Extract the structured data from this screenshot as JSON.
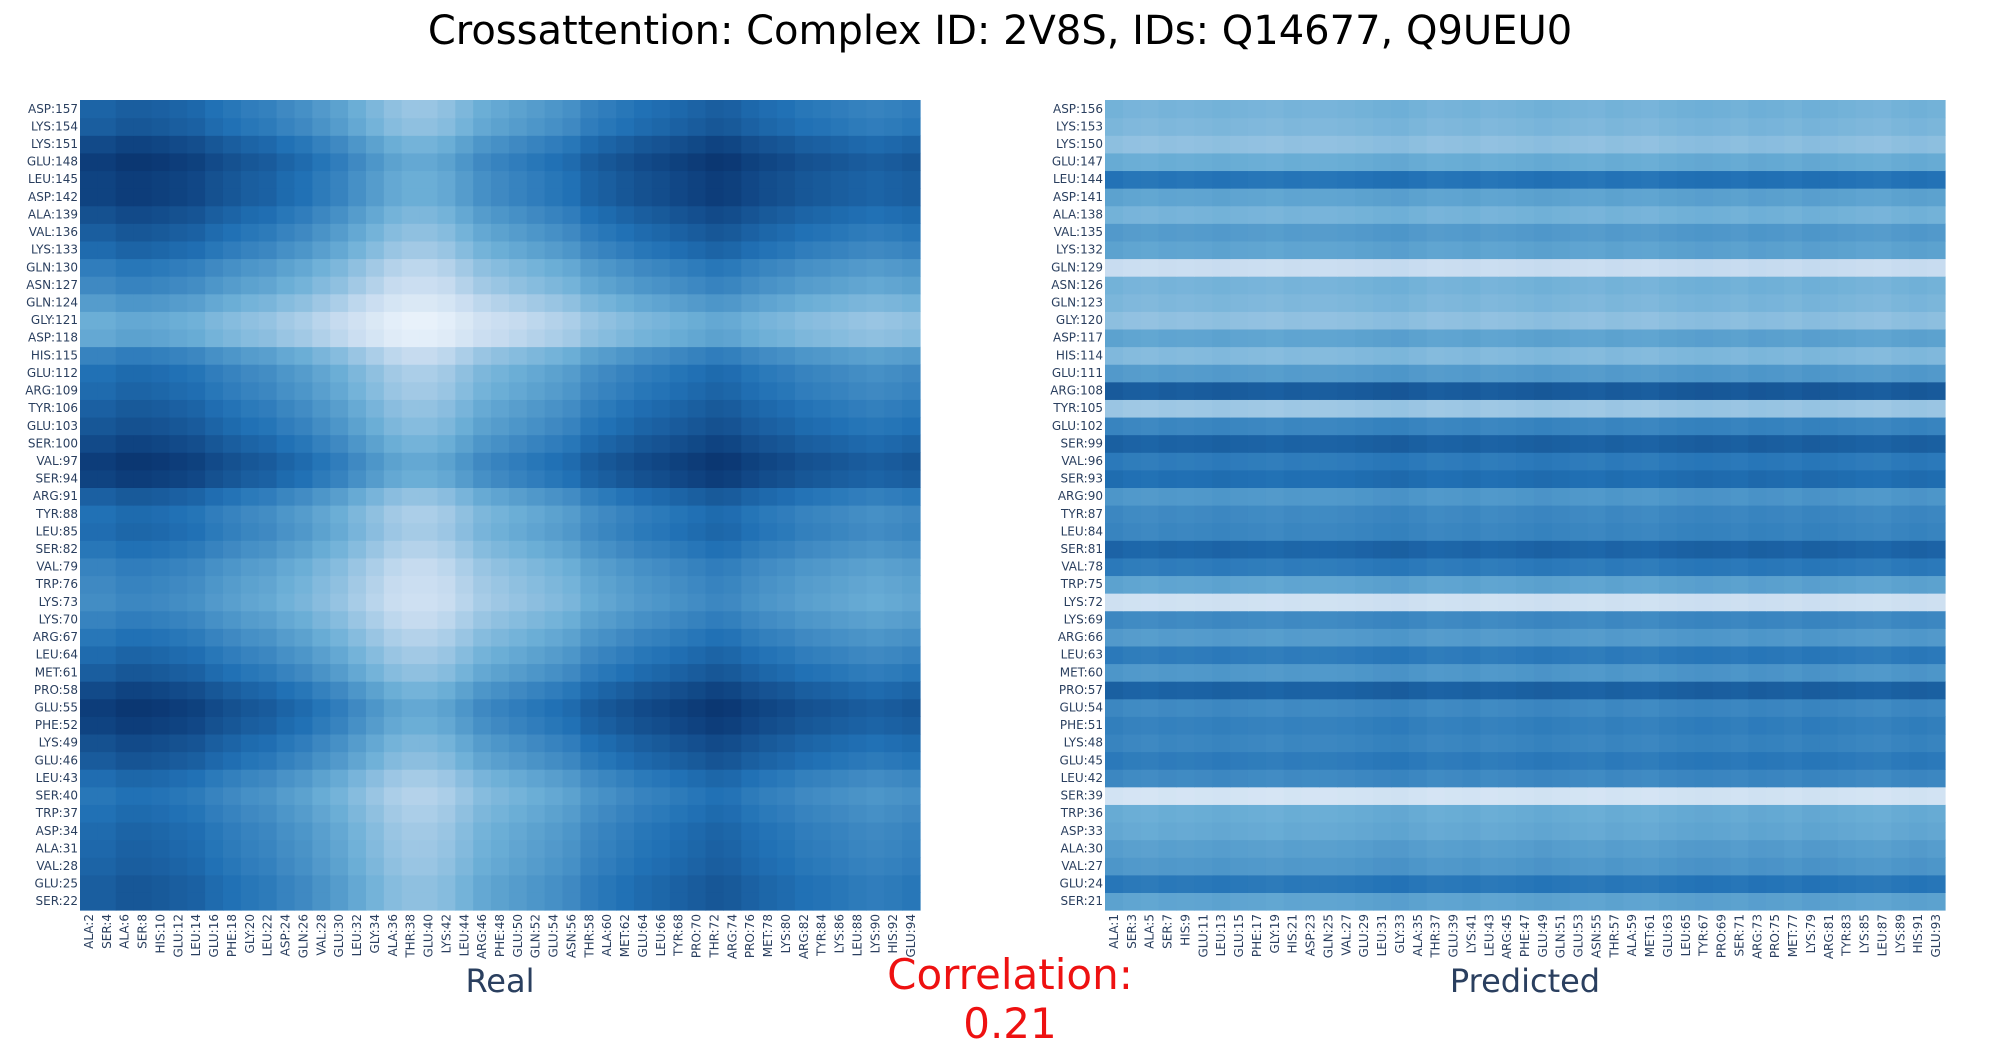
{
  "title": "Crossattention: Complex ID: 2V8S, IDs: Q14677, Q9UEU0",
  "correlation_text": "Correlation: 0.21",
  "colors": {
    "title": "#000000",
    "correlation": "#ee1111",
    "axis_title": "#2a3f5f",
    "tick_text": "#2a3f5f",
    "scale_low": "#f7fbff",
    "scale_high": "#08306b"
  },
  "chart_data": [
    {
      "type": "heatmap",
      "name": "Real",
      "colorscale": "Blues",
      "xlabel": "Real",
      "ylabel": "",
      "x_ticks": [
        "ALA:2",
        "SER:4",
        "ALA:6",
        "SER:8",
        "HIS:10",
        "GLU:12",
        "LEU:14",
        "GLU:16",
        "PHE:18",
        "GLY:20",
        "LEU:22",
        "ASP:24",
        "GLN:26",
        "VAL:28",
        "GLU:30",
        "LEU:32",
        "GLY:34",
        "ALA:36",
        "THR:38",
        "GLU:40",
        "LYS:42",
        "LEU:44",
        "ARG:46",
        "PHE:48",
        "GLU:50",
        "GLN:52",
        "GLU:54",
        "ASN:56",
        "THR:58",
        "ALA:60",
        "MET:62",
        "GLU:64",
        "LEU:66",
        "TYR:68",
        "PRO:70",
        "THR:72",
        "ARG:74",
        "PRO:76",
        "MET:78",
        "LYS:80",
        "ARG:82",
        "TYR:84",
        "LYS:86",
        "LEU:88",
        "LYS:90",
        "HIS:92",
        "GLU:94"
      ],
      "y_ticks": [
        "SER:22",
        "GLU:25",
        "VAL:28",
        "ALA:31",
        "ASP:34",
        "TRP:37",
        "SER:40",
        "LEU:43",
        "GLU:46",
        "LYS:49",
        "PHE:52",
        "GLU:55",
        "PRO:58",
        "MET:61",
        "LEU:64",
        "ARG:67",
        "LYS:70",
        "LYS:73",
        "TRP:76",
        "VAL:79",
        "SER:82",
        "LEU:85",
        "TYR:88",
        "ARG:91",
        "SER:94",
        "VAL:97",
        "SER:100",
        "GLU:103",
        "TYR:106",
        "ARG:109",
        "GLU:112",
        "HIS:115",
        "ASP:118",
        "GLY:121",
        "GLN:124",
        "ASN:127",
        "GLN:130",
        "LYS:133",
        "VAL:136",
        "ALA:139",
        "ASP:142",
        "LEU:145",
        "GLU:148",
        "LYS:151",
        "LYS:154",
        "ASP:157"
      ],
      "row_profile": [
        0.7,
        0.7,
        0.65,
        0.62,
        0.6,
        0.55,
        0.5,
        0.58,
        0.72,
        0.8,
        0.9,
        0.95,
        0.85,
        0.7,
        0.6,
        0.5,
        0.4,
        0.32,
        0.35,
        0.4,
        0.5,
        0.58,
        0.55,
        0.68,
        0.9,
        0.95,
        0.85,
        0.75,
        0.68,
        0.6,
        0.55,
        0.4,
        0.1,
        0.05,
        0.2,
        0.35,
        0.45,
        0.6,
        0.7,
        0.8,
        0.9,
        0.9,
        0.95,
        0.85,
        0.7,
        0.65
      ],
      "col_profile": [
        0.95,
        0.95,
        1.0,
        1.0,
        0.98,
        0.95,
        0.92,
        0.85,
        0.8,
        0.75,
        0.72,
        0.65,
        0.6,
        0.52,
        0.45,
        0.35,
        0.25,
        0.15,
        0.1,
        0.1,
        0.15,
        0.25,
        0.35,
        0.4,
        0.45,
        0.5,
        0.55,
        0.6,
        0.7,
        0.75,
        0.8,
        0.85,
        0.88,
        0.92,
        0.96,
        1.0,
        0.98,
        0.92,
        0.88,
        0.85,
        0.8,
        0.78,
        0.75,
        0.72,
        0.7,
        0.72,
        0.75
      ]
    },
    {
      "type": "heatmap",
      "name": "Predicted",
      "colorscale": "Blues",
      "xlabel": "Predicted",
      "ylabel": "",
      "x_ticks": [
        "ALA:1",
        "SER:3",
        "ALA:5",
        "SER:7",
        "HIS:9",
        "GLU:11",
        "LEU:13",
        "GLU:15",
        "PHE:17",
        "GLY:19",
        "HIS:21",
        "ASP:23",
        "GLN:25",
        "VAL:27",
        "GLU:29",
        "LEU:31",
        "GLY:33",
        "ALA:35",
        "THR:37",
        "GLU:39",
        "LYS:41",
        "LEU:43",
        "ARG:45",
        "PHE:47",
        "GLU:49",
        "GLN:51",
        "GLU:53",
        "ASN:55",
        "THR:57",
        "ALA:59",
        "MET:61",
        "GLU:63",
        "LEU:65",
        "TYR:67",
        "PRO:69",
        "SER:71",
        "ARG:73",
        "PRO:75",
        "MET:77",
        "LYS:79",
        "ARG:81",
        "TYR:83",
        "LYS:85",
        "LEU:87",
        "LYS:89",
        "HIS:91",
        "GLU:93"
      ],
      "y_ticks": [
        "SER:21",
        "GLU:24",
        "VAL:27",
        "ALA:30",
        "ASP:33",
        "TRP:36",
        "SER:39",
        "LEU:42",
        "GLU:45",
        "LYS:48",
        "PHE:51",
        "GLU:54",
        "PRO:57",
        "MET:60",
        "LEU:63",
        "ARG:66",
        "LYS:69",
        "LYS:72",
        "TRP:75",
        "VAL:78",
        "SER:81",
        "LEU:84",
        "TYR:87",
        "ARG:90",
        "SER:93",
        "VAL:96",
        "SER:99",
        "GLU:102",
        "TYR:105",
        "ARG:108",
        "GLU:111",
        "HIS:114",
        "ASP:117",
        "GLY:120",
        "GLN:123",
        "ASN:126",
        "GLN:129",
        "LYS:132",
        "VAL:135",
        "ALA:138",
        "ASP:141",
        "LEU:144",
        "GLU:147",
        "LYS:150",
        "LYS:153",
        "ASP:156"
      ],
      "row_profile": [
        0.55,
        0.8,
        0.62,
        0.58,
        0.52,
        0.5,
        0.05,
        0.7,
        0.78,
        0.72,
        0.75,
        0.7,
        0.92,
        0.62,
        0.78,
        0.6,
        0.7,
        0.08,
        0.55,
        0.78,
        0.9,
        0.72,
        0.7,
        0.62,
        0.85,
        0.78,
        0.92,
        0.72,
        0.3,
        0.95,
        0.6,
        0.4,
        0.55,
        0.35,
        0.42,
        0.45,
        0.12,
        0.55,
        0.6,
        0.45,
        0.55,
        0.82,
        0.5,
        0.35,
        0.42,
        0.45
      ],
      "col_profile": [
        0.55,
        0.5,
        0.48,
        0.52,
        0.5,
        0.52,
        0.55,
        0.52,
        0.5,
        0.48,
        0.52,
        0.5,
        0.5,
        0.52,
        0.55,
        0.58,
        0.6,
        0.55,
        0.5,
        0.52,
        0.55,
        0.5,
        0.52,
        0.55,
        0.58,
        0.55,
        0.52,
        0.5,
        0.55,
        0.52,
        0.5,
        0.55,
        0.58,
        0.6,
        0.58,
        0.55,
        0.6,
        0.58,
        0.55,
        0.6,
        0.58,
        0.55,
        0.52,
        0.5,
        0.55,
        0.58,
        0.55
      ]
    }
  ]
}
